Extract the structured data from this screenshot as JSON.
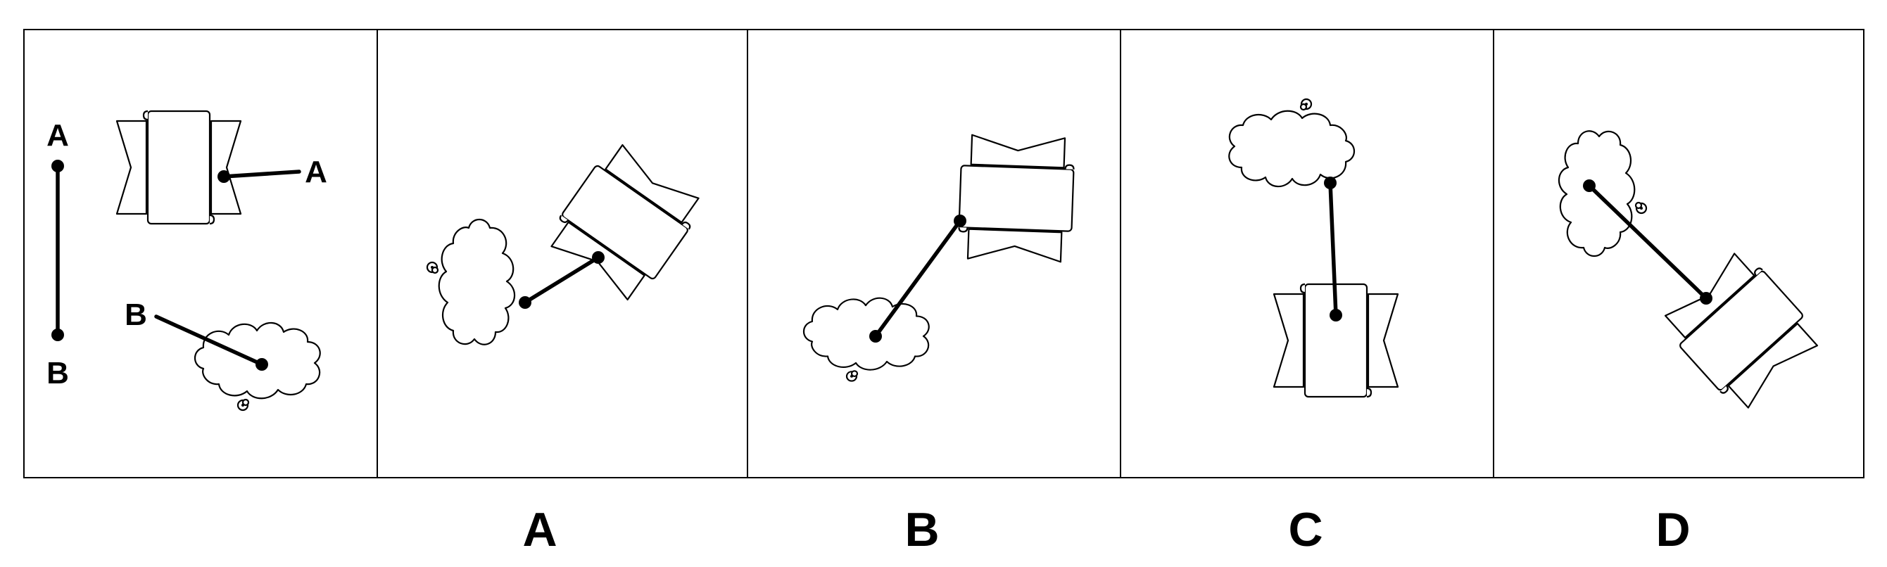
{
  "reference": {
    "segment_top_label": "A",
    "segment_bottom_label": "B",
    "flag_point_label": "A",
    "cloud_point_label": "B"
  },
  "options": {
    "a": "A",
    "b": "B",
    "c": "C",
    "d": "D"
  },
  "colors": {
    "stroke": "#000000",
    "fill": "#ffffff",
    "background": "#ffffff"
  }
}
